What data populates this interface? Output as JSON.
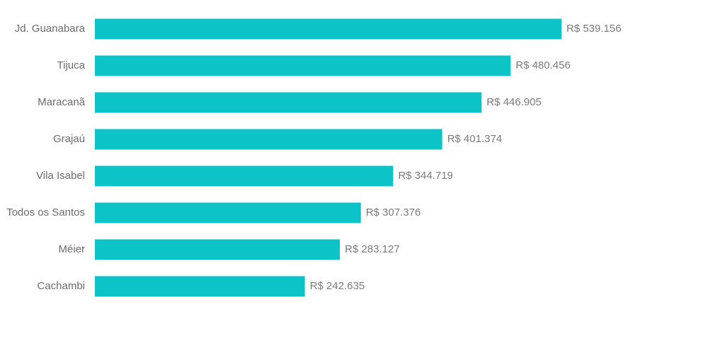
{
  "chart_data": {
    "type": "bar",
    "orientation": "horizontal",
    "categories": [
      "Jd. Guanabara",
      "Tijuca",
      "Maracanã",
      "Grajaú",
      "Vila Isabel",
      "Todos os Santos",
      "Méier",
      "Cachambi"
    ],
    "values": [
      539156,
      480456,
      446905,
      401374,
      344719,
      307376,
      283127,
      242635
    ],
    "value_labels": [
      "R$ 539.156",
      "R$ 480.456",
      "R$ 446.905",
      "R$ 401.374",
      "R$ 344.719",
      "R$ 307.376",
      "R$ 283.127",
      "R$ 242.635"
    ],
    "xlim": [
      0,
      539156
    ],
    "grid": false,
    "bar_color": "#0cc3c7"
  }
}
